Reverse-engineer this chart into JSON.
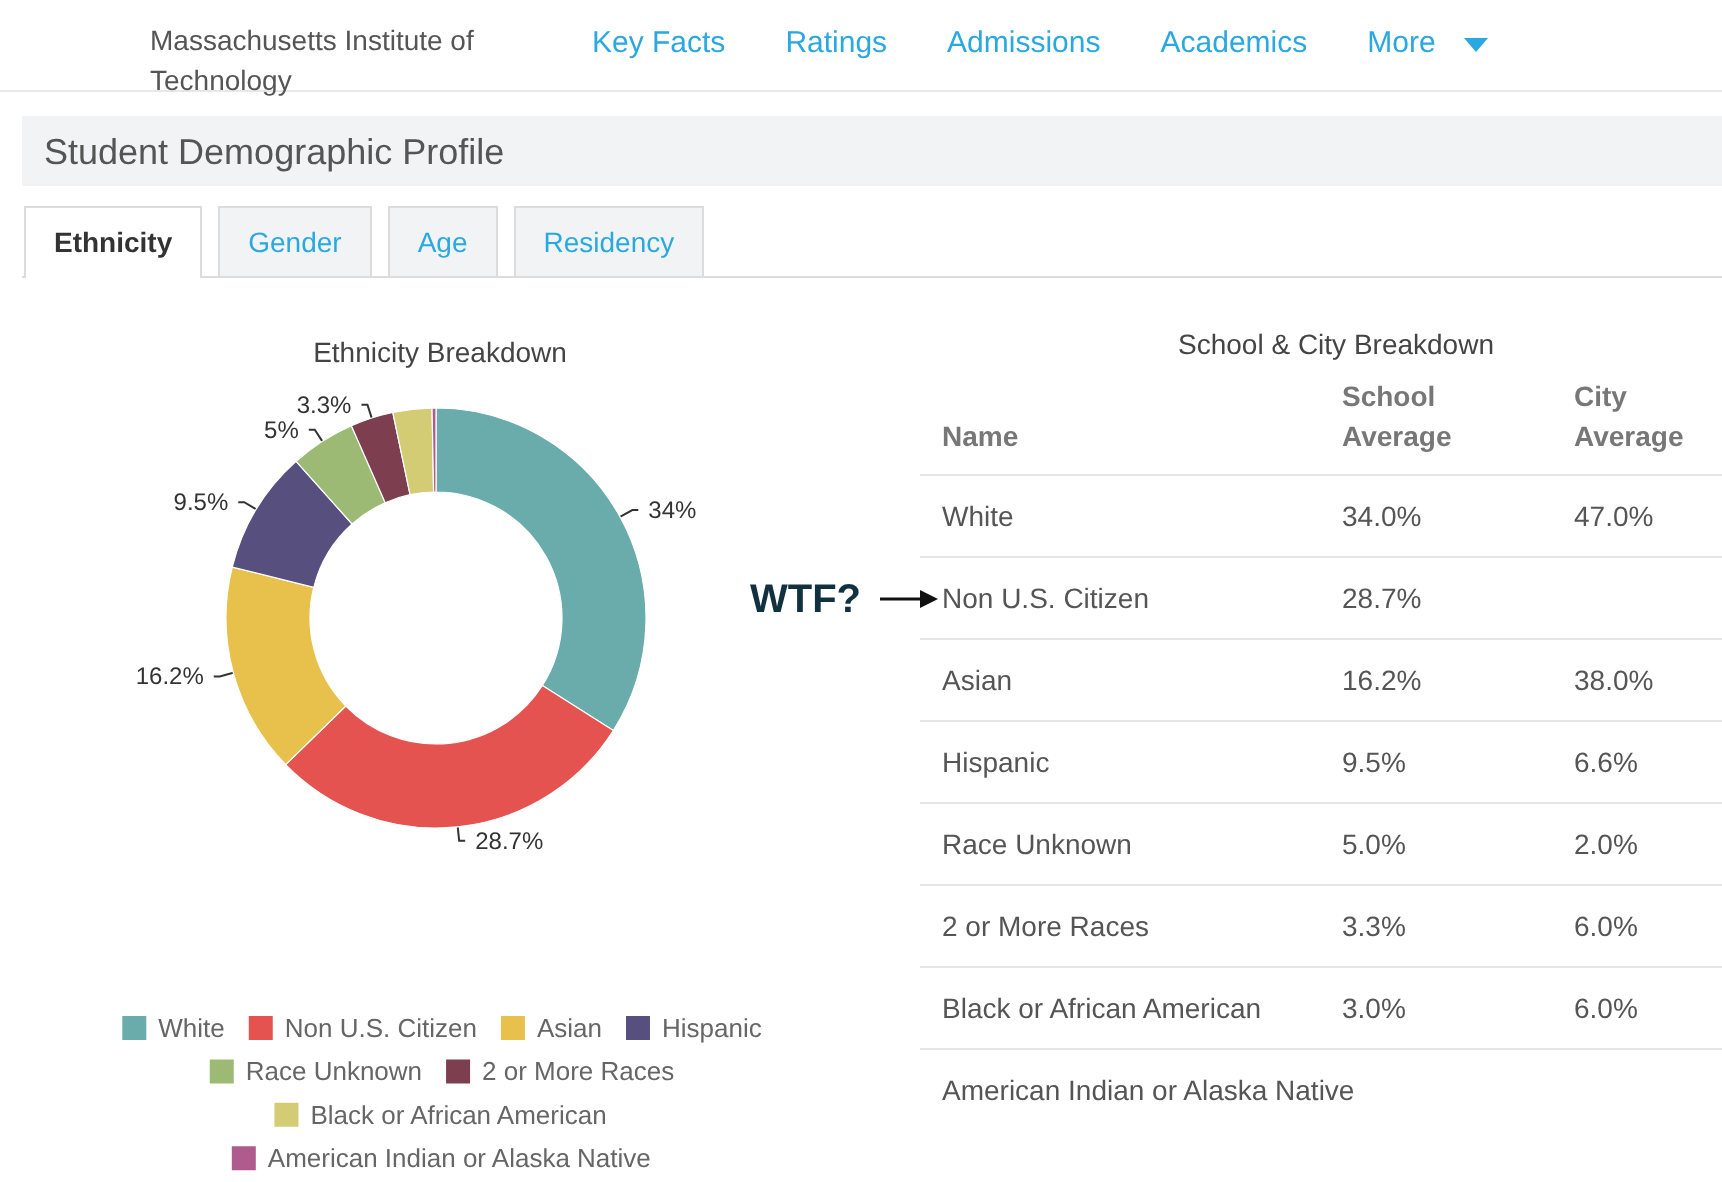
{
  "chart_data": [
    {
      "type": "donut",
      "title": "Ethnicity Breakdown",
      "categories": [
        "White",
        "Non U.S. Citizen",
        "Asian",
        "Hispanic",
        "Race Unknown",
        "2 or More Races",
        "Black or African American",
        "American Indian or Alaska Native"
      ],
      "values": [
        34,
        28.7,
        16.2,
        9.5,
        5,
        3.3,
        3,
        0.3
      ],
      "colors": [
        "#6aabab",
        "#e4534f",
        "#e8c14d",
        "#574f7d",
        "#9cba73",
        "#7d3e50",
        "#d4cc74",
        "#b05b8d"
      ],
      "value_labels": [
        "34%",
        "28.7%",
        "16.2%",
        "9.5%",
        "5%",
        "3.3%",
        null,
        null
      ],
      "legend": "bottom",
      "annotations": [
        "Massachusetts Institute of Technology",
        "Key Facts",
        "Ratings",
        "Admissions",
        "Academics",
        "More",
        "Student Demographic Profile",
        "Ethnicity",
        "Gender",
        "Age",
        "Residency"
      ]
    },
    {
      "type": "other",
      "title": "School & City Breakdown",
      "xlabel": "Name",
      "categories": [
        "White",
        "Non U.S. Citizen",
        "Asian",
        "Hispanic",
        "Race Unknown",
        "2 or More Races",
        "Black or African American",
        "American Indian or Alaska Native"
      ],
      "series": [
        {
          "name": "School Average",
          "values": [
            34.0,
            28.7,
            16.2,
            9.5,
            5.0,
            3.3,
            3.0,
            null
          ],
          "value_labels": [
            "34.0%",
            "28.7%",
            "16.2%",
            "9.5%",
            "5.0%",
            "3.3%",
            "3.0%",
            null
          ]
        },
        {
          "name": "City Average",
          "values": [
            47.0,
            null,
            38.0,
            6.6,
            2.0,
            6.0,
            6.0,
            null
          ],
          "value_labels": [
            "47.0%",
            null,
            "38.0%",
            "6.6%",
            "2.0%",
            "6.0%",
            "6.0%",
            null
          ]
        }
      ],
      "annotations": [
        {
          "text": "WTF?",
          "y": "Non U.S. Citizen"
        }
      ]
    }
  ]
}
